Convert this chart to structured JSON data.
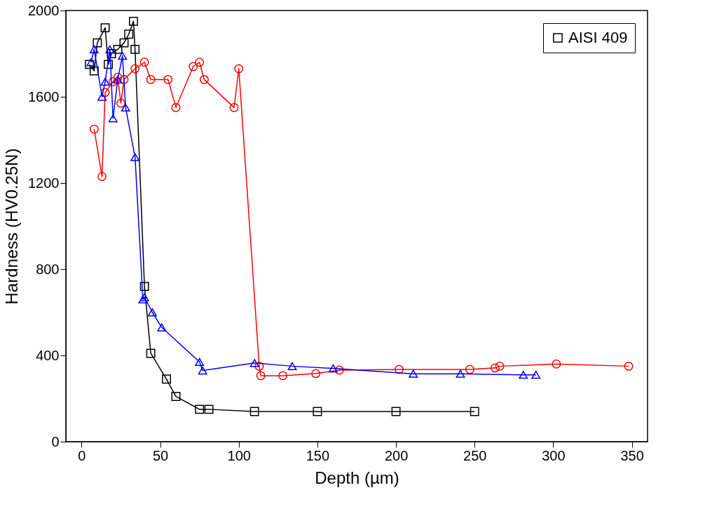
{
  "chart_data": {
    "type": "line",
    "xlabel": "Depth (µm)",
    "ylabel": "Hardness (HV0.25N)",
    "xlim": [
      -10,
      360
    ],
    "xticks": [
      0,
      50,
      100,
      150,
      200,
      250,
      300,
      350
    ],
    "ylim": [
      0,
      2000
    ],
    "yticks": [
      0,
      400,
      800,
      1200,
      1600,
      2000
    ],
    "grid": false,
    "legend": "top right",
    "line_style": "solid",
    "series": [
      {
        "name": "AISI 409",
        "color": "#000000",
        "marker": "square",
        "x": [
          5,
          8,
          10,
          15,
          17,
          19,
          23,
          27,
          30,
          33,
          34,
          40,
          44,
          54,
          60,
          75,
          81,
          110,
          150,
          200,
          250
        ],
        "values": [
          1750,
          1720,
          1850,
          1920,
          1750,
          1800,
          1820,
          1850,
          1890,
          1950,
          1820,
          720,
          410,
          290,
          210,
          150,
          150,
          140,
          140,
          140,
          140
        ]
      },
      {
        "color": "#ff0000",
        "marker": "circle",
        "x": [
          8,
          13,
          15,
          20,
          23,
          25,
          27,
          34,
          40,
          44,
          55,
          60,
          71,
          75,
          78,
          97,
          100,
          113,
          114,
          128,
          149,
          164,
          202,
          247,
          263,
          266,
          302,
          348
        ],
        "values": [
          1450,
          1230,
          1620,
          1670,
          1690,
          1570,
          1680,
          1730,
          1760,
          1680,
          1680,
          1550,
          1740,
          1760,
          1680,
          1550,
          1730,
          350,
          306,
          306,
          316,
          332,
          335,
          335,
          342,
          350,
          360,
          350
        ]
      },
      {
        "color": "#0000ff",
        "marker": "triangle",
        "x": [
          6,
          8,
          13,
          15,
          18,
          20,
          23,
          26,
          28,
          34,
          39,
          40,
          45,
          51,
          75,
          77,
          110,
          134,
          160,
          211,
          241,
          281,
          289
        ],
        "values": [
          1760,
          1820,
          1600,
          1670,
          1820,
          1500,
          1680,
          1790,
          1550,
          1320,
          660,
          670,
          600,
          530,
          370,
          330,
          365,
          350,
          340,
          315,
          315,
          310,
          310
        ]
      }
    ]
  }
}
